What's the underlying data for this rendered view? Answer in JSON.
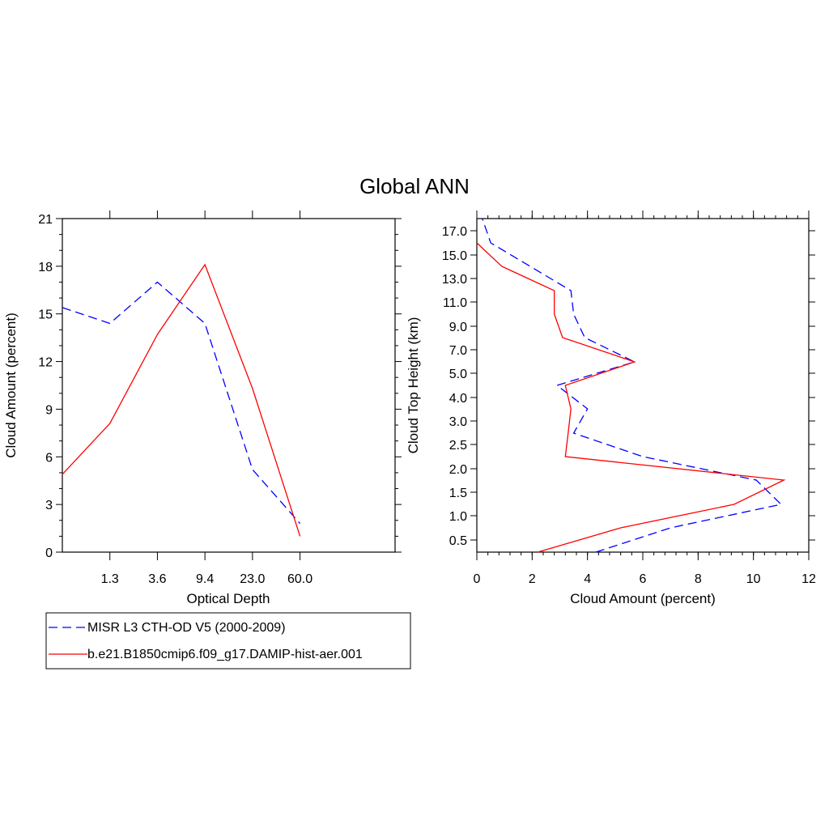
{
  "title": "Global ANN",
  "chart_data": [
    {
      "type": "line",
      "xlabel": "Optical Depth",
      "ylabel": "Cloud Amount (percent)",
      "x_tick_labels": [
        "1.3",
        "3.6",
        "9.4",
        "23.0",
        "60.0"
      ],
      "y_tick_labels": [
        "0",
        "3",
        "6",
        "9",
        "12",
        "15",
        "18",
        "21"
      ],
      "ylim": [
        0,
        21
      ],
      "bins": 7,
      "series": [
        {
          "name": "MISR L3 CTH-OD V5 (2000-2009)",
          "color": "#0000ff",
          "dash": "dashed",
          "values": [
            15.4,
            14.4,
            17.0,
            14.4,
            5.2,
            1.8,
            null
          ]
        },
        {
          "name": "b.e21.B1850cmip6.f09_g17.DAMIP-hist-aer.001",
          "color": "#ff0000",
          "dash": "solid",
          "values": [
            4.9,
            8.1,
            13.7,
            18.1,
            10.3,
            1.0,
            null
          ]
        }
      ]
    },
    {
      "type": "line",
      "orientation": "horizontal",
      "xlabel": "Cloud Amount (percent)",
      "ylabel": "Cloud Top Height (km)",
      "x_tick_labels": [
        "0",
        "2",
        "4",
        "6",
        "8",
        "10",
        "12"
      ],
      "xlim": [
        0,
        12
      ],
      "y_tick_labels": [
        "0.5",
        "1.0",
        "1.5",
        "2.0",
        "2.5",
        "3.0",
        "4.0",
        "5.0",
        "7.0",
        "9.0",
        "11.0",
        "13.0",
        "15.0",
        "17.0"
      ],
      "series": [
        {
          "name": "MISR L3 CTH-OD V5 (2000-2009)",
          "color": "#0000ff",
          "dash": "dashed",
          "x": [
            4.3,
            7.0,
            11.0,
            10.1,
            6.0,
            3.5,
            4.0,
            2.9,
            5.7,
            3.9,
            3.5,
            3.4,
            0.5,
            0.2
          ],
          "y": [
            "0.25",
            "0.75",
            "1.25",
            "1.75",
            "2.25",
            "2.75",
            "3.5",
            "4.5",
            "6.0",
            "8.0",
            "10.0",
            "12.0",
            "16.0",
            "17.5"
          ]
        },
        {
          "name": "b.e21.B1850cmip6.f09_g17.DAMIP-hist-aer.001",
          "color": "#ff0000",
          "dash": "solid",
          "x": [
            2.2,
            5.2,
            9.3,
            11.1,
            3.2,
            3.3,
            3.4,
            3.2,
            5.7,
            3.1,
            2.8,
            2.8,
            0.9,
            0.0
          ],
          "y": [
            "0.25",
            "0.75",
            "1.25",
            "1.75",
            "2.25",
            "2.75",
            "3.5",
            "4.5",
            "6.0",
            "8.0",
            "10.0",
            "12.0",
            "14.0",
            "16.0"
          ]
        }
      ]
    }
  ],
  "legend": [
    {
      "label": "MISR L3 CTH-OD V5 (2000-2009)",
      "color": "#0000ff",
      "dash": "dashed"
    },
    {
      "label": "b.e21.B1850cmip6.f09_g17.DAMIP-hist-aer.001",
      "color": "#ff0000",
      "dash": "solid"
    }
  ]
}
